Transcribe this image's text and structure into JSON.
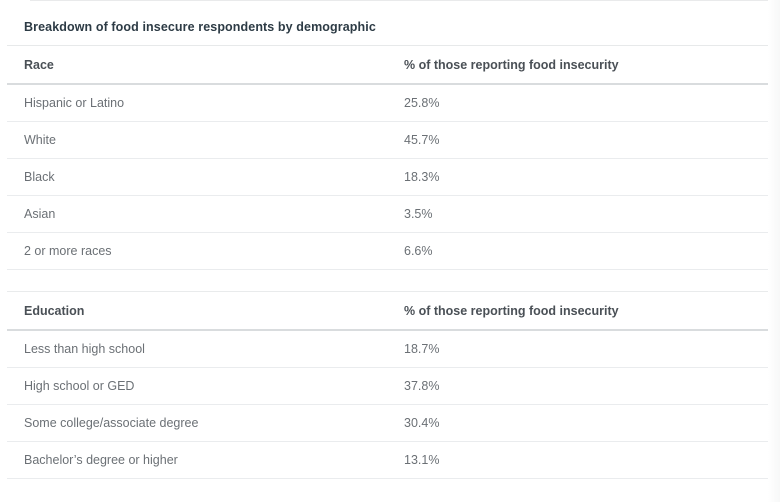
{
  "page": {
    "title": "Breakdown of food insecure respondents by demographic"
  },
  "tables": [
    {
      "header": {
        "category": "Race",
        "value": "% of those reporting food insecurity"
      },
      "rows": [
        {
          "label": "Hispanic or Latino",
          "value": "25.8%"
        },
        {
          "label": "White",
          "value": "45.7%"
        },
        {
          "label": "Black",
          "value": "18.3%"
        },
        {
          "label": "Asian",
          "value": "3.5%"
        },
        {
          "label": "2 or more races",
          "value": "6.6%"
        }
      ]
    },
    {
      "header": {
        "category": "Education",
        "value": "% of those reporting food insecurity"
      },
      "rows": [
        {
          "label": "Less than high school",
          "value": "18.7%"
        },
        {
          "label": "High school or GED",
          "value": "37.8%"
        },
        {
          "label": "Some college/associate degree",
          "value": "30.4%"
        },
        {
          "label": "Bachelor’s degree or higher",
          "value": "13.1%"
        }
      ]
    }
  ],
  "chart_data": [
    {
      "type": "table",
      "title": "Breakdown of food insecure respondents by demographic",
      "columns": [
        "Race",
        "% of those reporting food insecurity"
      ],
      "categories": [
        "Hispanic or Latino",
        "White",
        "Black",
        "Asian",
        "2 or more races"
      ],
      "values": [
        25.8,
        45.7,
        18.3,
        3.5,
        6.6
      ],
      "unit": "%"
    },
    {
      "type": "table",
      "title": "Breakdown of food insecure respondents by demographic",
      "columns": [
        "Education",
        "% of those reporting food insecurity"
      ],
      "categories": [
        "Less than high school",
        "High school or GED",
        "Some college/associate degree",
        "Bachelor’s degree or higher"
      ],
      "values": [
        18.7,
        37.8,
        30.4,
        13.1
      ],
      "unit": "%"
    }
  ],
  "colors": {
    "background": "#ffffff",
    "title_text": "#2d3b45",
    "header_text": "#4a5056",
    "body_text": "#6b7075",
    "row_divider": "#eaecee",
    "header_divider": "#d9dcde"
  }
}
